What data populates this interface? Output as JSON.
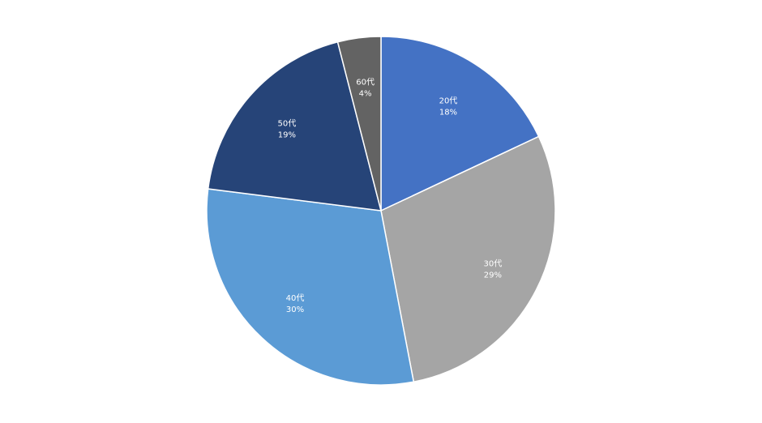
{
  "chart_data": {
    "type": "pie",
    "title": "",
    "slices": [
      {
        "category": "20代",
        "percent_label": "18%",
        "value": 18,
        "color": "#4472C4",
        "label_color": "#ffffff"
      },
      {
        "category": "30代",
        "percent_label": "29%",
        "value": 29,
        "color": "#A5A5A5",
        "label_color": "#ffffff"
      },
      {
        "category": "40代",
        "percent_label": "30%",
        "value": 30,
        "color": "#5B9BD5",
        "label_color": "#ffffff"
      },
      {
        "category": "50代",
        "percent_label": "19%",
        "value": 19,
        "color": "#264478",
        "label_color": "#ffffff"
      },
      {
        "category": "60代",
        "percent_label": "4%",
        "value": 4,
        "color": "#636363",
        "label_color": "#ffffff"
      }
    ],
    "start": "12 o'clock",
    "direction": "clockwise",
    "legend": "none"
  }
}
